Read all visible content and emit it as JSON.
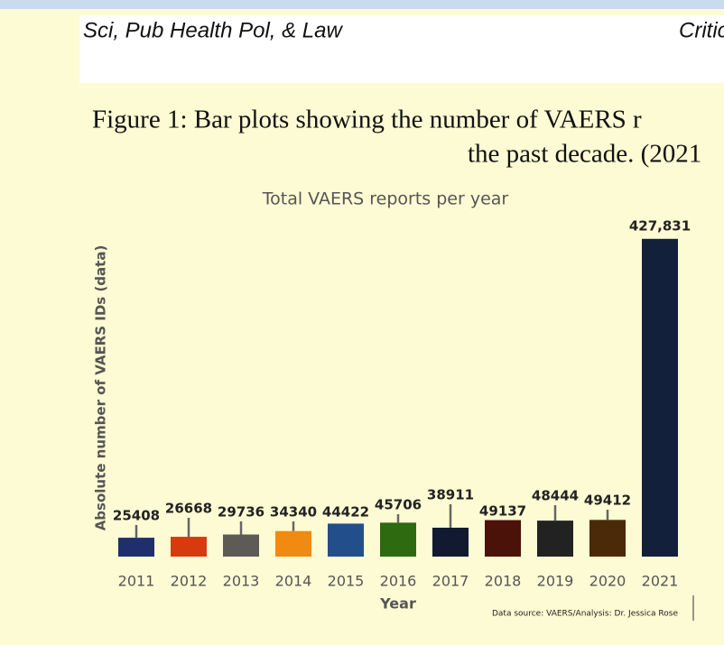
{
  "header": {
    "journal": "Sci, Pub Health Pol, & Law",
    "section": "Critic"
  },
  "caption": {
    "line1": "Figure 1:  Bar plots showing the number of VAERS r",
    "line2": "the past decade. (2021"
  },
  "chart_data": {
    "type": "bar",
    "title": "Total VAERS reports per year",
    "x_label": "Year",
    "y_label": "Absolute number of VAERS IDs (data)",
    "source": "Data source: VAERS/Analysis: Dr. Jessica Rose",
    "categories": [
      "2011",
      "2012",
      "2013",
      "2014",
      "2015",
      "2016",
      "2017",
      "2018",
      "2019",
      "2020",
      "2021"
    ],
    "values": [
      25408,
      26668,
      29736,
      34340,
      44422,
      45706,
      38911,
      49137,
      48444,
      49412,
      427831
    ],
    "value_labels": [
      "25408",
      "26668",
      "29736",
      "34340",
      "44422",
      "45706",
      "38911",
      "49137",
      "48444",
      "49412",
      "427,831"
    ],
    "colors": [
      "#1f2f6e",
      "#d83a10",
      "#5e5a55",
      "#f08a10",
      "#234e8c",
      "#2e6a10",
      "#111a30",
      "#4a1208",
      "#222222",
      "#4a2a08",
      "#13203c"
    ],
    "ylim": [
      0,
      430000
    ]
  }
}
